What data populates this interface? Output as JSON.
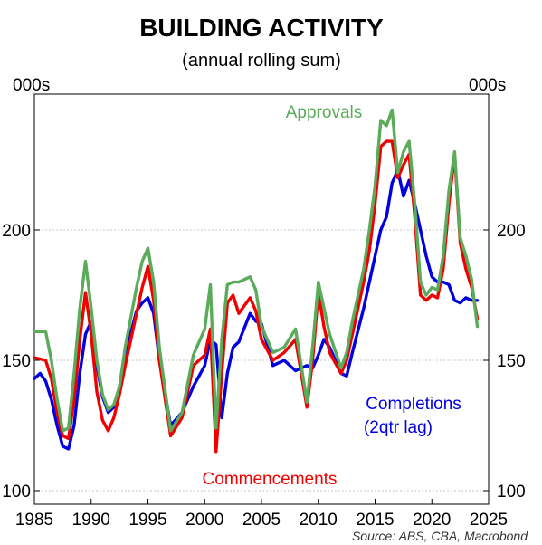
{
  "chart_data": {
    "type": "line",
    "title": "BUILDING ACTIVITY",
    "subtitle": "(annual rolling sum)",
    "ylabel_left": "000s",
    "ylabel_right": "000s",
    "source": "Source: ABS, CBA, Macrobond",
    "xlim": [
      1985,
      2025
    ],
    "ylim": [
      100,
      250
    ],
    "x_ticks": [
      "1985",
      "1990",
      "1995",
      "2000",
      "2005",
      "2010",
      "2015",
      "2020",
      "2025"
    ],
    "y_ticks": [
      "100",
      "150",
      "200"
    ],
    "grid": true,
    "series": [
      {
        "name": "Approvals",
        "color": "#5aab5a",
        "x": [
          1985,
          1986,
          1986.5,
          1987,
          1987.5,
          1988,
          1988.5,
          1989,
          1989.5,
          1990,
          1990.5,
          1991,
          1991.5,
          1992,
          1992.5,
          1993,
          1994,
          1994.5,
          1995,
          1995.5,
          1996,
          1997,
          1998,
          1999,
          2000,
          2000.5,
          2001,
          2001.5,
          2002,
          2002.5,
          2003,
          2004,
          2004.5,
          2005,
          2006,
          2007,
          2008,
          2009,
          2009.5,
          2010,
          2010.5,
          2011,
          2012,
          2012.5,
          2013,
          2014,
          2014.5,
          2015,
          2015.5,
          2016,
          2016.5,
          2017,
          2017.5,
          2018,
          2018.5,
          2019,
          2019.5,
          2020,
          2020.5,
          2021,
          2021.5,
          2022,
          2022.5,
          2023,
          2023.5,
          2024
        ],
        "values": [
          161,
          161,
          150,
          135,
          123,
          124,
          145,
          170,
          188,
          170,
          150,
          137,
          131,
          133,
          140,
          155,
          178,
          188,
          193,
          180,
          155,
          123,
          130,
          152,
          162,
          179,
          124,
          158,
          179,
          180,
          180,
          182,
          177,
          163,
          153,
          155,
          162,
          134,
          155,
          180,
          170,
          160,
          147,
          153,
          165,
          185,
          200,
          217,
          242,
          240,
          246,
          222,
          230,
          234,
          210,
          180,
          175,
          178,
          177,
          190,
          215,
          230,
          197,
          190,
          181,
          163
        ]
      },
      {
        "name": "Commencements",
        "color": "#f00000",
        "x": [
          1985,
          1986,
          1986.5,
          1987,
          1987.5,
          1988,
          1988.5,
          1989,
          1989.5,
          1990,
          1990.5,
          1991,
          1991.5,
          1992,
          1992.5,
          1993,
          1994,
          1994.5,
          1995,
          1995.5,
          1996,
          1997,
          1998,
          1999,
          2000,
          2000.5,
          2001,
          2001.5,
          2002,
          2002.5,
          2003,
          2004,
          2004.5,
          2005,
          2006,
          2007,
          2008,
          2009,
          2009.5,
          2010,
          2010.5,
          2011,
          2012,
          2012.5,
          2013,
          2014,
          2014.5,
          2015,
          2015.5,
          2016,
          2016.5,
          2017,
          2017.5,
          2018,
          2018.5,
          2019,
          2019.5,
          2020,
          2020.5,
          2021,
          2021.5,
          2022,
          2022.5,
          2023,
          2023.5,
          2024
        ],
        "values": [
          151,
          150,
          143,
          130,
          121,
          120,
          135,
          158,
          176,
          160,
          138,
          127,
          123,
          128,
          137,
          148,
          168,
          178,
          186,
          173,
          150,
          121,
          128,
          148,
          152,
          162,
          115,
          145,
          172,
          175,
          168,
          174,
          169,
          158,
          150,
          153,
          158,
          132,
          150,
          176,
          163,
          153,
          145,
          150,
          160,
          180,
          192,
          210,
          232,
          234,
          234,
          220,
          225,
          229,
          205,
          175,
          173,
          175,
          174,
          185,
          210,
          229,
          195,
          185,
          178,
          166
        ]
      },
      {
        "name": "Completions (2qtr lag)",
        "label_lines": [
          "Completions",
          "(2qtr lag)"
        ],
        "color": "#0000e0",
        "x": [
          1985,
          1985.5,
          1986,
          1986.5,
          1987,
          1987.5,
          1988,
          1988.5,
          1989,
          1989.5,
          1990,
          1990.5,
          1991,
          1991.5,
          1992,
          1992.5,
          1993,
          1994,
          1994.5,
          1995,
          1995.5,
          1996,
          1997,
          1998,
          1999,
          2000,
          2000.5,
          2001,
          2001.5,
          2002,
          2002.5,
          2003,
          2004,
          2004.5,
          2005,
          2006,
          2007,
          2008,
          2009,
          2009.5,
          2010,
          2010.5,
          2011,
          2012,
          2012.5,
          2013,
          2014,
          2014.5,
          2015,
          2015.5,
          2016,
          2016.5,
          2017,
          2017.5,
          2018,
          2018.5,
          2019,
          2019.5,
          2020,
          2020.5,
          2021,
          2021.5,
          2022,
          2022.5,
          2023,
          2023.5,
          2024
        ],
        "values": [
          143,
          145,
          142,
          135,
          125,
          117,
          116,
          125,
          145,
          160,
          165,
          148,
          136,
          130,
          132,
          140,
          152,
          169,
          172,
          174,
          168,
          150,
          125,
          130,
          140,
          148,
          158,
          156,
          128,
          145,
          155,
          157,
          168,
          165,
          164,
          148,
          150,
          146,
          148,
          147,
          152,
          158,
          155,
          145,
          144,
          153,
          170,
          180,
          190,
          200,
          205,
          218,
          223,
          213,
          219,
          210,
          200,
          190,
          182,
          180,
          180,
          179,
          173,
          172,
          174,
          173,
          173
        ]
      }
    ]
  }
}
